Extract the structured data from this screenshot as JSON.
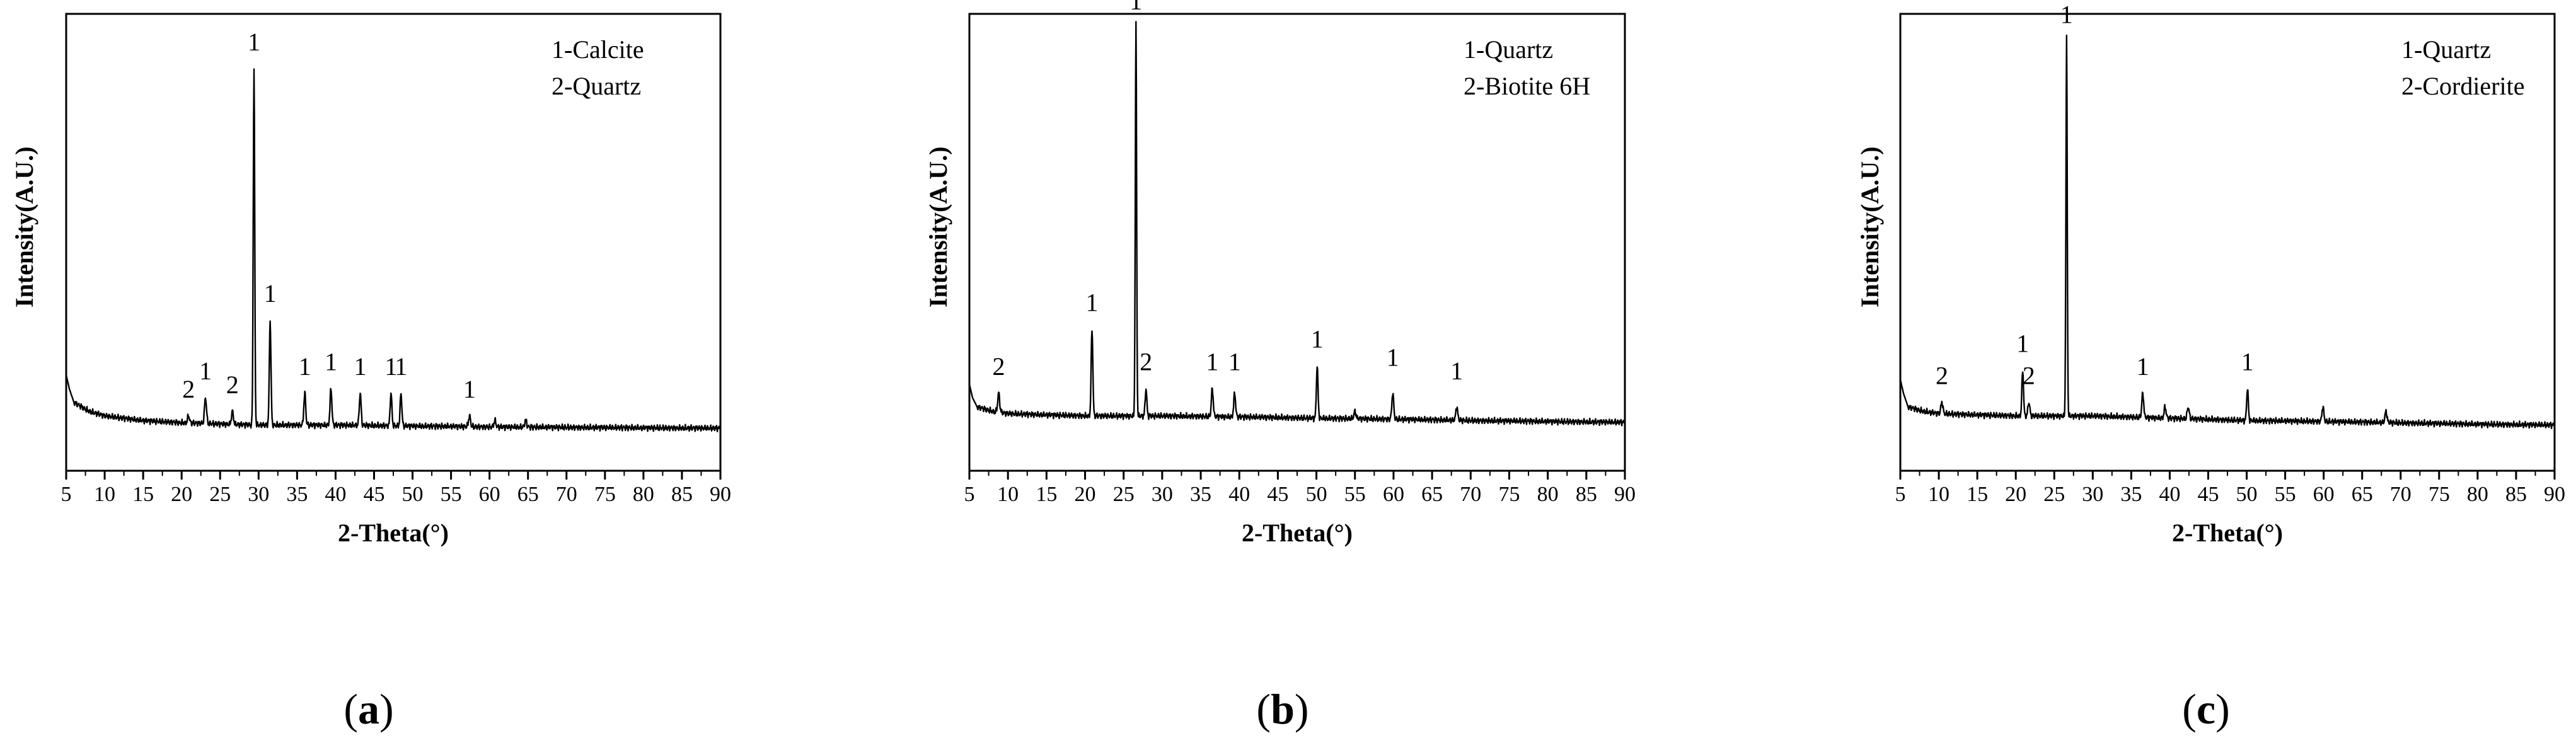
{
  "chart_data": [
    {
      "type": "line",
      "panel_label": "a",
      "xlabel": "2-Theta(°)",
      "ylabel": "Intensity(A.U.)",
      "xlim": [
        5,
        90
      ],
      "ylim": [
        0,
        100
      ],
      "x_ticks": [
        5,
        10,
        15,
        20,
        25,
        30,
        35,
        40,
        45,
        50,
        55,
        60,
        65,
        70,
        75,
        80,
        85,
        90
      ],
      "legend": [
        "1-Calcite",
        "2-Quartz"
      ],
      "baseline": [
        [
          5,
          21
        ],
        [
          5.4,
          18
        ],
        [
          6,
          15
        ],
        [
          8,
          13
        ],
        [
          10,
          12
        ],
        [
          15,
          11
        ],
        [
          20,
          10.5
        ],
        [
          30,
          10
        ],
        [
          40,
          10
        ],
        [
          50,
          9.8
        ],
        [
          60,
          9.6
        ],
        [
          70,
          9.5
        ],
        [
          80,
          9.4
        ],
        [
          90,
          9.3
        ]
      ],
      "peaks": [
        {
          "x": 20.9,
          "y": 12,
          "w": 0.3
        },
        {
          "x": 23.1,
          "y": 16,
          "w": 0.3
        },
        {
          "x": 26.6,
          "y": 13,
          "w": 0.3
        },
        {
          "x": 29.4,
          "y": 88,
          "w": 0.22
        },
        {
          "x": 31.5,
          "y": 33,
          "w": 0.25
        },
        {
          "x": 36.0,
          "y": 17,
          "w": 0.28
        },
        {
          "x": 39.4,
          "y": 18,
          "w": 0.28
        },
        {
          "x": 43.2,
          "y": 17,
          "w": 0.28
        },
        {
          "x": 47.2,
          "y": 17,
          "w": 0.26
        },
        {
          "x": 48.5,
          "y": 17,
          "w": 0.26
        },
        {
          "x": 57.4,
          "y": 12,
          "w": 0.3
        },
        {
          "x": 60.7,
          "y": 11,
          "w": 0.3
        },
        {
          "x": 64.7,
          "y": 11,
          "w": 0.3
        }
      ],
      "annotations": [
        {
          "text": "2",
          "x": 20.9,
          "y": 16
        },
        {
          "text": "1",
          "x": 23.1,
          "y": 20
        },
        {
          "text": "2",
          "x": 26.6,
          "y": 17
        },
        {
          "text": "1",
          "x": 29.4,
          "y": 92
        },
        {
          "text": "1",
          "x": 31.5,
          "y": 37
        },
        {
          "text": "1",
          "x": 36.0,
          "y": 21
        },
        {
          "text": "1",
          "x": 39.4,
          "y": 22
        },
        {
          "text": "1",
          "x": 43.2,
          "y": 21
        },
        {
          "text": "1",
          "x": 47.2,
          "y": 21
        },
        {
          "text": "1",
          "x": 48.5,
          "y": 21
        },
        {
          "text": "1",
          "x": 57.4,
          "y": 16
        }
      ]
    },
    {
      "type": "line",
      "panel_label": "b",
      "xlabel": "2-Theta(°)",
      "ylabel": "Intensity(A.U.)",
      "xlim": [
        5,
        90
      ],
      "ylim": [
        0,
        100
      ],
      "x_ticks": [
        5,
        10,
        15,
        20,
        25,
        30,
        35,
        40,
        45,
        50,
        55,
        60,
        65,
        70,
        75,
        80,
        85,
        90
      ],
      "legend": [
        "1-Quartz",
        "2-Biotite 6H"
      ],
      "baseline": [
        [
          5,
          19
        ],
        [
          5.4,
          16
        ],
        [
          6,
          14
        ],
        [
          8,
          13
        ],
        [
          10,
          12.5
        ],
        [
          20,
          12
        ],
        [
          30,
          12
        ],
        [
          40,
          11.8
        ],
        [
          50,
          11.5
        ],
        [
          60,
          11.3
        ],
        [
          70,
          11
        ],
        [
          80,
          10.8
        ],
        [
          90,
          10.6
        ]
      ],
      "peaks": [
        {
          "x": 8.8,
          "y": 17,
          "w": 0.3
        },
        {
          "x": 20.9,
          "y": 31,
          "w": 0.25
        },
        {
          "x": 26.6,
          "y": 98,
          "w": 0.2
        },
        {
          "x": 27.9,
          "y": 18,
          "w": 0.25
        },
        {
          "x": 36.5,
          "y": 18,
          "w": 0.28
        },
        {
          "x": 39.4,
          "y": 17,
          "w": 0.28
        },
        {
          "x": 50.1,
          "y": 23,
          "w": 0.25
        },
        {
          "x": 55.0,
          "y": 13,
          "w": 0.3
        },
        {
          "x": 59.9,
          "y": 17,
          "w": 0.28
        },
        {
          "x": 68.2,
          "y": 14,
          "w": 0.28
        }
      ],
      "annotations": [
        {
          "text": "2",
          "x": 8.8,
          "y": 21
        },
        {
          "text": "1",
          "x": 20.9,
          "y": 35
        },
        {
          "text": "1",
          "x": 26.6,
          "y": 101
        },
        {
          "text": "2",
          "x": 27.9,
          "y": 22
        },
        {
          "text": "1",
          "x": 36.5,
          "y": 22
        },
        {
          "text": "1",
          "x": 39.4,
          "y": 22
        },
        {
          "text": "1",
          "x": 50.1,
          "y": 27
        },
        {
          "text": "1",
          "x": 59.9,
          "y": 23
        },
        {
          "text": "1",
          "x": 68.2,
          "y": 20
        }
      ]
    },
    {
      "type": "line",
      "panel_label": "c",
      "xlabel": "2-Theta(°)",
      "ylabel": "Intensity(A.U.)",
      "xlim": [
        5,
        90
      ],
      "ylim": [
        0,
        100
      ],
      "x_ticks": [
        5,
        10,
        15,
        20,
        25,
        30,
        35,
        40,
        45,
        50,
        55,
        60,
        65,
        70,
        75,
        80,
        85,
        90
      ],
      "legend": [
        "1-Quartz",
        "2-Cordierite"
      ],
      "baseline": [
        [
          5,
          20
        ],
        [
          5.4,
          17
        ],
        [
          6,
          14
        ],
        [
          8,
          13
        ],
        [
          10,
          12.5
        ],
        [
          20,
          12
        ],
        [
          30,
          12
        ],
        [
          40,
          11.5
        ],
        [
          50,
          11
        ],
        [
          60,
          10.8
        ],
        [
          70,
          10.5
        ],
        [
          80,
          10.2
        ],
        [
          90,
          10
        ]
      ],
      "peaks": [
        {
          "x": 10.4,
          "y": 15,
          "w": 0.3
        },
        {
          "x": 20.9,
          "y": 22,
          "w": 0.25
        },
        {
          "x": 21.7,
          "y": 15,
          "w": 0.28
        },
        {
          "x": 26.6,
          "y": 95,
          "w": 0.2
        },
        {
          "x": 36.5,
          "y": 17,
          "w": 0.28
        },
        {
          "x": 39.4,
          "y": 14,
          "w": 0.3
        },
        {
          "x": 42.4,
          "y": 14,
          "w": 0.3
        },
        {
          "x": 50.1,
          "y": 18,
          "w": 0.25
        },
        {
          "x": 59.9,
          "y": 14,
          "w": 0.28
        },
        {
          "x": 68.1,
          "y": 13,
          "w": 0.3
        }
      ],
      "annotations": [
        {
          "text": "2",
          "x": 10.4,
          "y": 19
        },
        {
          "text": "1",
          "x": 20.9,
          "y": 26
        },
        {
          "text": "2",
          "x": 21.7,
          "y": 19
        },
        {
          "text": "1",
          "x": 26.6,
          "y": 98
        },
        {
          "text": "1",
          "x": 36.5,
          "y": 21
        },
        {
          "text": "1",
          "x": 50.1,
          "y": 22
        }
      ]
    }
  ]
}
